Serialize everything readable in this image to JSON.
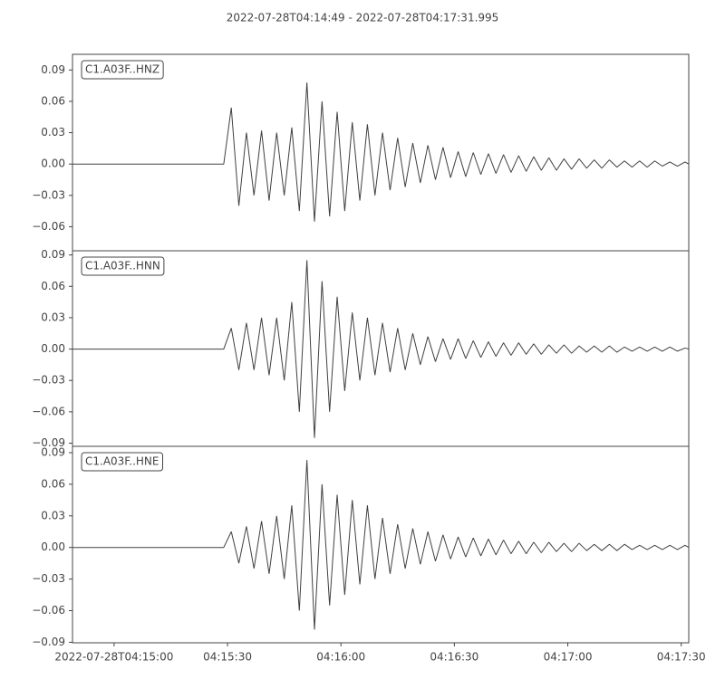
{
  "chart_data": {
    "type": "line",
    "title": "2022-07-28T04:14:49  -  2022-07-28T04:17:31.995",
    "xlim": [
      "2022-07-28T04:14:49",
      "2022-07-28T04:17:31.995"
    ],
    "xticks": [
      {
        "value": "2022-07-28T04:15:00",
        "label": "2022-07-28T04:15:00"
      },
      {
        "value": "2022-07-28T04:15:30",
        "label": "04:15:30"
      },
      {
        "value": "2022-07-28T04:16:00",
        "label": "04:16:00"
      },
      {
        "value": "2022-07-28T04:16:30",
        "label": "04:16:30"
      },
      {
        "value": "2022-07-28T04:17:00",
        "label": "04:17:00"
      },
      {
        "value": "2022-07-28T04:17:30",
        "label": "04:17:30"
      }
    ],
    "x": [
      "04:14:49",
      "04:15:29",
      "04:15:31",
      "04:15:33",
      "04:15:35",
      "04:15:37",
      "04:15:39",
      "04:15:41",
      "04:15:43",
      "04:15:45",
      "04:15:47",
      "04:15:49",
      "04:15:51",
      "04:15:53",
      "04:15:55",
      "04:15:57",
      "04:15:59",
      "04:16:01",
      "04:16:03",
      "04:16:05",
      "04:16:07",
      "04:16:09",
      "04:16:11",
      "04:16:13",
      "04:16:15",
      "04:16:17",
      "04:16:19",
      "04:16:21",
      "04:16:23",
      "04:16:25",
      "04:16:27",
      "04:16:29",
      "04:16:31",
      "04:16:33",
      "04:16:35",
      "04:16:37",
      "04:16:39",
      "04:16:41",
      "04:16:43",
      "04:16:45",
      "04:16:47",
      "04:16:49",
      "04:16:51",
      "04:16:53",
      "04:16:55",
      "04:16:57",
      "04:16:59",
      "04:17:01",
      "04:17:03",
      "04:17:05",
      "04:17:07",
      "04:17:09",
      "04:17:11",
      "04:17:13",
      "04:17:15",
      "04:17:17",
      "04:17:19",
      "04:17:21",
      "04:17:23",
      "04:17:25",
      "04:17:27",
      "04:17:29",
      "04:17:31",
      "04:17:31.995"
    ],
    "series": [
      {
        "name": "C1.A03F..HNZ",
        "color": "#404040",
        "ylim": [
          -0.083,
          0.105
        ],
        "yticks": [
          {
            "value": 0.09,
            "label": "0.09"
          },
          {
            "value": 0.06,
            "label": "0.06"
          },
          {
            "value": 0.03,
            "label": "0.03"
          },
          {
            "value": 0,
            "label": "0.00"
          },
          {
            "value": -0.03,
            "label": "−0.03"
          },
          {
            "value": -0.06,
            "label": "−0.06"
          }
        ],
        "values": [
          0,
          0,
          0.054,
          -0.04,
          0.03,
          -0.03,
          0.032,
          -0.035,
          0.03,
          -0.03,
          0.035,
          -0.045,
          0.078,
          -0.055,
          0.06,
          -0.05,
          0.05,
          -0.045,
          0.04,
          -0.035,
          0.038,
          -0.03,
          0.03,
          -0.025,
          0.025,
          -0.022,
          0.02,
          -0.018,
          0.018,
          -0.015,
          0.016,
          -0.013,
          0.012,
          -0.012,
          0.011,
          -0.01,
          0.01,
          -0.009,
          0.009,
          -0.008,
          0.008,
          -0.007,
          0.007,
          -0.006,
          0.006,
          -0.006,
          0.005,
          -0.005,
          0.005,
          -0.004,
          0.004,
          -0.004,
          0.004,
          -0.003,
          0.003,
          -0.003,
          0.003,
          -0.003,
          0.003,
          -0.002,
          0.002,
          -0.002,
          0.002,
          0
        ]
      },
      {
        "name": "C1.A03F..HNN",
        "color": "#404040",
        "ylim": [
          -0.093,
          0.094
        ],
        "yticks": [
          {
            "value": 0.09,
            "label": "0.09"
          },
          {
            "value": 0.06,
            "label": "0.06"
          },
          {
            "value": 0.03,
            "label": "0.03"
          },
          {
            "value": 0,
            "label": "0.00"
          },
          {
            "value": -0.03,
            "label": "−0.03"
          },
          {
            "value": -0.06,
            "label": "−0.06"
          },
          {
            "value": -0.09,
            "label": "−0.09"
          }
        ],
        "values": [
          0,
          0,
          0.02,
          -0.02,
          0.025,
          -0.02,
          0.03,
          -0.025,
          0.03,
          -0.03,
          0.045,
          -0.06,
          0.085,
          -0.085,
          0.065,
          -0.06,
          0.05,
          -0.04,
          0.035,
          -0.03,
          0.03,
          -0.025,
          0.025,
          -0.022,
          0.02,
          -0.02,
          0.015,
          -0.015,
          0.012,
          -0.012,
          0.01,
          -0.01,
          0.01,
          -0.009,
          0.008,
          -0.008,
          0.007,
          -0.007,
          0.006,
          -0.006,
          0.006,
          -0.005,
          0.005,
          -0.005,
          0.004,
          -0.004,
          0.004,
          -0.004,
          0.003,
          -0.003,
          0.003,
          -0.003,
          0.003,
          -0.003,
          0.002,
          -0.002,
          0.002,
          -0.002,
          0.002,
          -0.002,
          0.002,
          -0.002,
          0.001,
          0
        ]
      },
      {
        "name": "C1.A03F..HNE",
        "color": "#404040",
        "ylim": [
          -0.0905,
          0.096
        ],
        "yticks": [
          {
            "value": 0.09,
            "label": "0.09"
          },
          {
            "value": 0.06,
            "label": "0.06"
          },
          {
            "value": 0.03,
            "label": "0.03"
          },
          {
            "value": 0,
            "label": "0.00"
          },
          {
            "value": -0.03,
            "label": "−0.03"
          },
          {
            "value": -0.06,
            "label": "−0.06"
          },
          {
            "value": -0.09,
            "label": "−0.09"
          }
        ],
        "values": [
          0,
          0,
          0.015,
          -0.015,
          0.02,
          -0.02,
          0.025,
          -0.025,
          0.03,
          -0.03,
          0.04,
          -0.06,
          0.083,
          -0.078,
          0.06,
          -0.055,
          0.05,
          -0.045,
          0.045,
          -0.035,
          0.04,
          -0.03,
          0.028,
          -0.025,
          0.022,
          -0.02,
          0.018,
          -0.016,
          0.015,
          -0.013,
          0.012,
          -0.011,
          0.01,
          -0.009,
          0.009,
          -0.008,
          0.008,
          -0.007,
          0.007,
          -0.006,
          0.006,
          -0.006,
          0.005,
          -0.005,
          0.005,
          -0.004,
          0.004,
          -0.004,
          0.004,
          -0.003,
          0.003,
          -0.003,
          0.003,
          -0.003,
          0.003,
          -0.002,
          0.002,
          -0.002,
          0.002,
          -0.002,
          0.002,
          -0.002,
          0.002,
          0
        ]
      }
    ]
  }
}
